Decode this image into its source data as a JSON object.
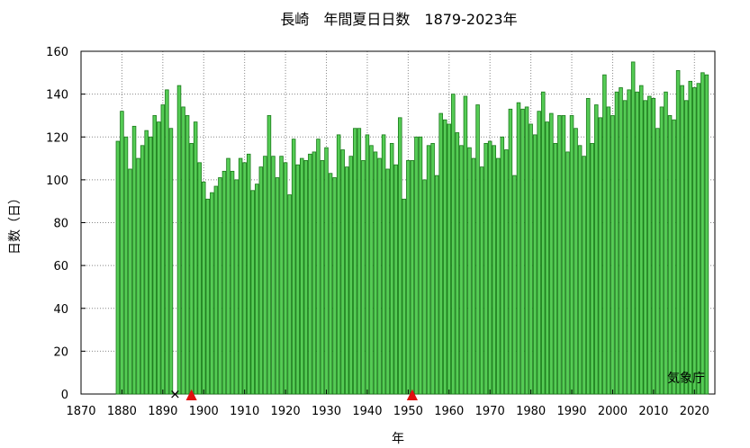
{
  "chart_data": {
    "type": "bar",
    "title": "長崎　年間夏日日数　1879-2023年",
    "xlabel": "年",
    "ylabel": "日数（日）",
    "credit": "気象庁",
    "xlim": [
      1870,
      2025
    ],
    "ylim": [
      0,
      160
    ],
    "xticks": [
      1870,
      1880,
      1890,
      1900,
      1910,
      1920,
      1930,
      1940,
      1950,
      1960,
      1970,
      1980,
      1990,
      2000,
      2010,
      2020
    ],
    "yticks": [
      0,
      20,
      40,
      60,
      80,
      100,
      120,
      140,
      160
    ],
    "grid": true,
    "bar_color": "#55cc55",
    "bar_edge_color": "#1a7a1a",
    "x": [
      1879,
      1880,
      1881,
      1882,
      1883,
      1884,
      1885,
      1886,
      1887,
      1888,
      1889,
      1890,
      1891,
      1892,
      1893,
      1894,
      1895,
      1896,
      1897,
      1898,
      1899,
      1900,
      1901,
      1902,
      1903,
      1904,
      1905,
      1906,
      1907,
      1908,
      1909,
      1910,
      1911,
      1912,
      1913,
      1914,
      1915,
      1916,
      1917,
      1918,
      1919,
      1920,
      1921,
      1922,
      1923,
      1924,
      1925,
      1926,
      1927,
      1928,
      1929,
      1930,
      1931,
      1932,
      1933,
      1934,
      1935,
      1936,
      1937,
      1938,
      1939,
      1940,
      1941,
      1942,
      1943,
      1944,
      1945,
      1946,
      1947,
      1948,
      1949,
      1950,
      1951,
      1952,
      1953,
      1954,
      1955,
      1956,
      1957,
      1958,
      1959,
      1960,
      1961,
      1962,
      1963,
      1964,
      1965,
      1966,
      1967,
      1968,
      1969,
      1970,
      1971,
      1972,
      1973,
      1974,
      1975,
      1976,
      1977,
      1978,
      1979,
      1980,
      1981,
      1982,
      1983,
      1984,
      1985,
      1986,
      1987,
      1988,
      1989,
      1990,
      1991,
      1992,
      1993,
      1994,
      1995,
      1996,
      1997,
      1998,
      1999,
      2000,
      2001,
      2002,
      2003,
      2004,
      2005,
      2006,
      2007,
      2008,
      2009,
      2010,
      2011,
      2012,
      2013,
      2014,
      2015,
      2016,
      2017,
      2018,
      2019,
      2020,
      2021,
      2022,
      2023
    ],
    "values": [
      118,
      132,
      120,
      105,
      125,
      110,
      116,
      123,
      120,
      130,
      127,
      135,
      142,
      124,
      null,
      144,
      134,
      130,
      117,
      127,
      108,
      99,
      91,
      94,
      97,
      101,
      104,
      110,
      104,
      100,
      110,
      108,
      112,
      95,
      98,
      106,
      111,
      130,
      111,
      101,
      111,
      108,
      93,
      119,
      107,
      110,
      109,
      112,
      113,
      119,
      109,
      115,
      103,
      101,
      121,
      114,
      106,
      111,
      124,
      124,
      109,
      121,
      116,
      113,
      110,
      121,
      105,
      117,
      107,
      129,
      91,
      109,
      109,
      120,
      120,
      100,
      116,
      117,
      102,
      131,
      128,
      126,
      140,
      122,
      116,
      139,
      115,
      110,
      135,
      106,
      117,
      118,
      116,
      110,
      120,
      114,
      133,
      102,
      136,
      133,
      134,
      126,
      121,
      132,
      141,
      127,
      131,
      117,
      130,
      130,
      113,
      130,
      124,
      116,
      111,
      138,
      117,
      135,
      129,
      149,
      134,
      130,
      141,
      143,
      137,
      142,
      155,
      141,
      144,
      137,
      139,
      138,
      124,
      134,
      141,
      130,
      128,
      151,
      144,
      137,
      146,
      143,
      145,
      150,
      149
    ]
  },
  "markers": [
    {
      "year": 1893,
      "symbol": "×",
      "color": "#000000",
      "meaning": "missing"
    },
    {
      "year": 1897,
      "symbol": "▲",
      "color": "#e01010"
    },
    {
      "year": 1951,
      "symbol": "▲",
      "color": "#e01010"
    }
  ]
}
